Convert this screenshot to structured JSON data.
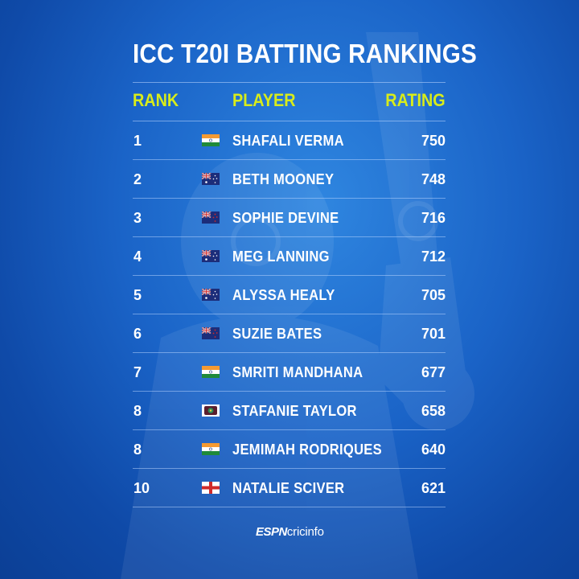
{
  "title": "ICC T20I BATTING RANKINGS",
  "headers": {
    "rank": "RANK",
    "player": "PLAYER",
    "rating": "RATING"
  },
  "rows": [
    {
      "rank": "1",
      "flag": "india-flag-icon",
      "player": "SHAFALI VERMA",
      "rating": "750"
    },
    {
      "rank": "2",
      "flag": "australia-flag-icon",
      "player": "BETH MOONEY",
      "rating": "748"
    },
    {
      "rank": "3",
      "flag": "new-zealand-flag-icon",
      "player": "SOPHIE DEVINE",
      "rating": "716"
    },
    {
      "rank": "4",
      "flag": "australia-flag-icon",
      "player": "MEG LANNING",
      "rating": "712"
    },
    {
      "rank": "5",
      "flag": "australia-flag-icon",
      "player": "ALYSSA HEALY",
      "rating": "705"
    },
    {
      "rank": "6",
      "flag": "new-zealand-flag-icon",
      "player": "SUZIE BATES",
      "rating": "701"
    },
    {
      "rank": "7",
      "flag": "india-flag-icon",
      "player": "SMRITI MANDHANA",
      "rating": "677"
    },
    {
      "rank": "8",
      "flag": "west-indies-flag-icon",
      "player": "STAFANIE TAYLOR",
      "rating": "658"
    },
    {
      "rank": "8",
      "flag": "india-flag-icon",
      "player": "JEMIMAH RODRIQUES",
      "rating": "640"
    },
    {
      "rank": "10",
      "flag": "england-flag-icon",
      "player": "NATALIE SCIVER",
      "rating": "621"
    }
  ],
  "logo": {
    "espn": "ESPN",
    "cricinfo": "cricinfo"
  },
  "colors": {
    "accent": "#d8ec1a",
    "background": "#1a63c7",
    "text": "#ffffff"
  }
}
